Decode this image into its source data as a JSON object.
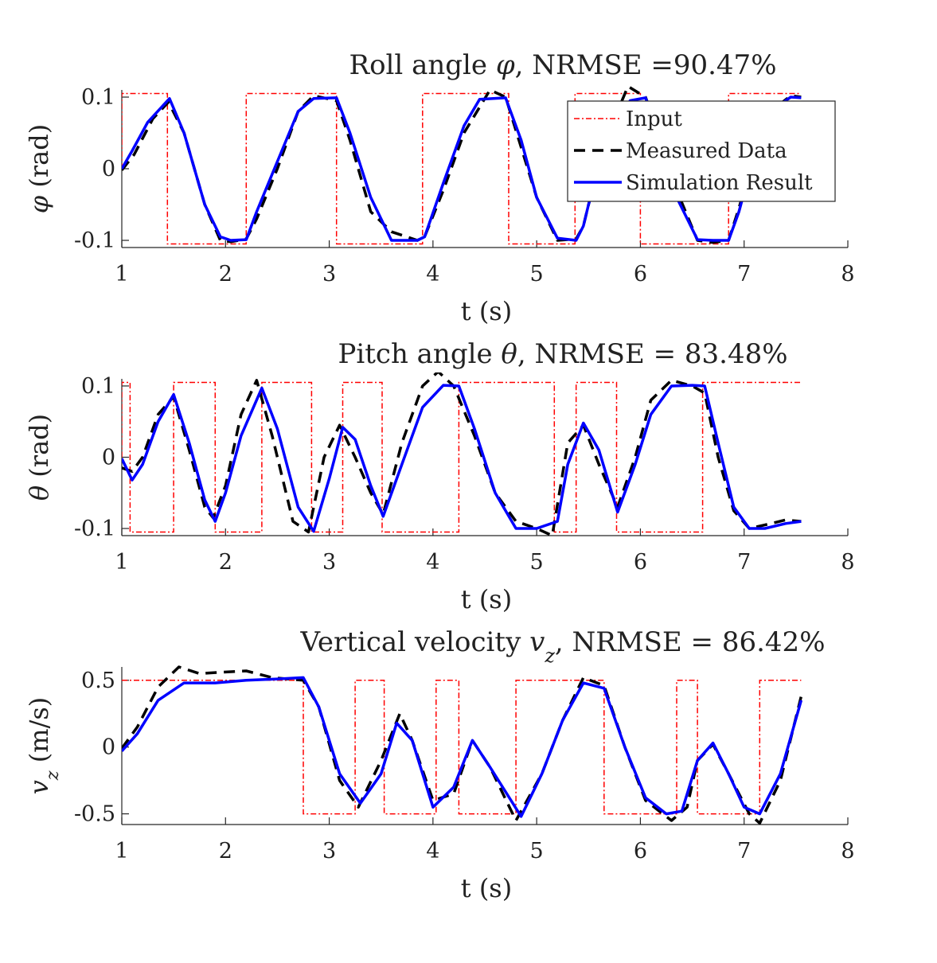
{
  "legend": {
    "placement": "top-right of first panel",
    "entries": [
      {
        "key": "input",
        "label": "Input",
        "color": "#ff0000",
        "dash": "dash-dot"
      },
      {
        "key": "measured",
        "label": "Measured Data",
        "color": "#000000",
        "dash": "dashed"
      },
      {
        "key": "sim",
        "label": "Simulation Result",
        "color": "#0000ff",
        "dash": "solid"
      }
    ]
  },
  "chart_data": [
    {
      "type": "line",
      "title": {
        "prefix": "Roll angle ",
        "symbol": "φ",
        "suffix": ", NRMSE =90.47%"
      },
      "ylabel": {
        "symbol": "φ",
        "text": " (rad)"
      },
      "xlabel": "t (s)",
      "xlim": [
        1,
        8
      ],
      "ylim": [
        -0.11,
        0.11
      ],
      "xticks": [
        1,
        2,
        3,
        4,
        5,
        6,
        7,
        8
      ],
      "yticks": [
        {
          "v": -0.1,
          "label": "-0.1"
        },
        {
          "v": 0,
          "label": "0"
        },
        {
          "v": 0.1,
          "label": "0.1"
        }
      ],
      "has_legend": true,
      "series": {
        "input": {
          "amp": 0.105,
          "switch": [
            1,
            1.44,
            2.2,
            3.07,
            3.9,
            4.73,
            5.37,
            6.0,
            6.85
          ],
          "start": 1,
          "end": 7.55
        },
        "sim": {
          "x": [
            1,
            1.1,
            1.25,
            1.46,
            1.6,
            1.8,
            1.95,
            2.05,
            2.2,
            2.3,
            2.5,
            2.7,
            2.85,
            3.07,
            3.2,
            3.4,
            3.6,
            3.85,
            3.92,
            4.1,
            4.3,
            4.45,
            4.7,
            4.85,
            5.0,
            5.2,
            5.38,
            5.45,
            5.5,
            5.6,
            5.75,
            5.9,
            6.05,
            6.15,
            6.35,
            6.55,
            6.7,
            6.85,
            6.95,
            7.1,
            7.3,
            7.45,
            7.55
          ],
          "y": [
            0.0,
            0.025,
            0.065,
            0.098,
            0.05,
            -0.05,
            -0.095,
            -0.1,
            -0.099,
            -0.06,
            0.01,
            0.08,
            0.098,
            0.099,
            0.05,
            -0.04,
            -0.1,
            -0.1,
            -0.095,
            -0.02,
            0.06,
            0.097,
            0.099,
            0.04,
            -0.04,
            -0.097,
            -0.1,
            -0.08,
            -0.05,
            0.0,
            0.06,
            0.095,
            0.099,
            0.06,
            -0.04,
            -0.099,
            -0.1,
            -0.1,
            -0.06,
            0.02,
            0.085,
            0.1,
            0.099
          ]
        },
        "measured": {
          "x": [
            1,
            1.12,
            1.3,
            1.45,
            1.6,
            1.8,
            1.95,
            2.05,
            2.2,
            2.3,
            2.5,
            2.7,
            2.85,
            3.07,
            3.2,
            3.4,
            3.6,
            3.85,
            3.92,
            4.1,
            4.3,
            4.55,
            4.7,
            4.85,
            5.0,
            5.2,
            5.38,
            5.45,
            5.5,
            5.6,
            5.75,
            5.88,
            6.05,
            6.15,
            6.35,
            6.55,
            6.7,
            6.85,
            6.95,
            7.1,
            7.3,
            7.45,
            7.55
          ],
          "y": [
            -0.002,
            0.02,
            0.07,
            0.093,
            0.05,
            -0.05,
            -0.1,
            -0.102,
            -0.098,
            -0.07,
            0.0,
            0.08,
            0.102,
            0.095,
            0.04,
            -0.06,
            -0.088,
            -0.1,
            -0.095,
            -0.03,
            0.05,
            0.11,
            0.1,
            0.03,
            -0.04,
            -0.1,
            -0.098,
            -0.08,
            -0.05,
            0.0,
            0.07,
            0.115,
            0.1,
            0.06,
            -0.03,
            -0.1,
            -0.103,
            -0.1,
            -0.055,
            0.02,
            0.085,
            0.102,
            0.1
          ]
        }
      }
    },
    {
      "type": "line",
      "title": {
        "prefix": "Pitch angle ",
        "symbol": "θ",
        "suffix": ", NRMSE = 83.48%"
      },
      "ylabel": {
        "symbol": "θ",
        "text": " (rad)"
      },
      "xlabel": "t (s)",
      "xlim": [
        1,
        8
      ],
      "ylim": [
        -0.11,
        0.11
      ],
      "xticks": [
        1,
        2,
        3,
        4,
        5,
        6,
        7,
        8
      ],
      "yticks": [
        {
          "v": -0.1,
          "label": "-0.1"
        },
        {
          "v": 0,
          "label": "0"
        },
        {
          "v": 0.1,
          "label": "0.1"
        }
      ],
      "has_legend": false,
      "series": {
        "input": {
          "amp": 0.105,
          "switch": [
            1.0,
            1.08,
            1.5,
            1.9,
            2.35,
            2.83,
            3.13,
            3.51,
            4.25,
            5.17,
            5.38,
            5.77,
            6.6
          ],
          "start": 1,
          "end": 7.55,
          "start_level": -1
        },
        "sim": {
          "x": [
            1,
            1.1,
            1.2,
            1.35,
            1.5,
            1.65,
            1.8,
            1.9,
            2.0,
            2.15,
            2.35,
            2.5,
            2.7,
            2.85,
            3.0,
            3.13,
            3.25,
            3.4,
            3.52,
            3.7,
            3.9,
            4.1,
            4.25,
            4.4,
            4.6,
            4.8,
            5.0,
            5.2,
            5.3,
            5.45,
            5.6,
            5.78,
            5.95,
            6.1,
            6.3,
            6.5,
            6.62,
            6.75,
            6.9,
            7.05,
            7.2,
            7.4,
            7.55
          ],
          "y": [
            -0.002,
            -0.032,
            -0.01,
            0.05,
            0.088,
            0.02,
            -0.06,
            -0.09,
            -0.05,
            0.03,
            0.097,
            0.04,
            -0.07,
            -0.104,
            -0.03,
            0.042,
            0.025,
            -0.04,
            -0.083,
            -0.01,
            0.07,
            0.101,
            0.1,
            0.04,
            -0.05,
            -0.1,
            -0.1,
            -0.09,
            -0.01,
            0.048,
            0.01,
            -0.077,
            -0.01,
            0.06,
            0.1,
            0.101,
            0.1,
            0.02,
            -0.07,
            -0.1,
            -0.1,
            -0.093,
            -0.09
          ]
        },
        "measured": {
          "x": [
            1,
            1.1,
            1.2,
            1.35,
            1.5,
            1.65,
            1.8,
            1.88,
            2.0,
            2.15,
            2.3,
            2.45,
            2.65,
            2.8,
            2.95,
            3.1,
            3.25,
            3.4,
            3.52,
            3.7,
            3.9,
            4.05,
            4.2,
            4.4,
            4.6,
            4.8,
            5.0,
            5.15,
            5.3,
            5.45,
            5.6,
            5.78,
            5.95,
            6.1,
            6.3,
            6.5,
            6.62,
            6.75,
            6.9,
            7.05,
            7.2,
            7.4,
            7.55
          ],
          "y": [
            -0.015,
            -0.02,
            0.0,
            0.06,
            0.085,
            0.01,
            -0.07,
            -0.085,
            -0.04,
            0.06,
            0.108,
            0.03,
            -0.09,
            -0.105,
            0.0,
            0.045,
            0.0,
            -0.05,
            -0.08,
            0.02,
            0.1,
            0.12,
            0.1,
            0.03,
            -0.05,
            -0.09,
            -0.1,
            -0.11,
            0.02,
            0.045,
            -0.01,
            -0.07,
            0.0,
            0.08,
            0.108,
            0.1,
            0.09,
            0.0,
            -0.075,
            -0.1,
            -0.095,
            -0.088,
            -0.09
          ]
        }
      }
    },
    {
      "type": "line",
      "title": {
        "prefix": "Vertical velocity ",
        "symbol": "v",
        "sub": "z",
        "suffix": ", NRMSE = 86.42%"
      },
      "ylabel": {
        "symbol": "v",
        "sub": "z",
        "text": " (m/s)"
      },
      "xlabel": "t (s)",
      "xlim": [
        1,
        8
      ],
      "ylim": [
        -0.58,
        0.6
      ],
      "xticks": [
        1,
        2,
        3,
        4,
        5,
        6,
        7,
        8
      ],
      "yticks": [
        {
          "v": -0.5,
          "label": "-0.5"
        },
        {
          "v": 0,
          "label": "0"
        },
        {
          "v": 0.5,
          "label": "0.5"
        }
      ],
      "has_legend": false,
      "series": {
        "input": {
          "amp": 0.5,
          "switch": [
            2.75,
            3.25,
            3.53,
            4.03,
            4.25,
            4.8,
            5.65,
            6.35,
            6.55,
            7.15
          ],
          "start": 1,
          "end": 7.55,
          "start_level": 1
        },
        "sim": {
          "x": [
            1,
            1.15,
            1.35,
            1.6,
            1.9,
            2.2,
            2.5,
            2.75,
            2.9,
            3.1,
            3.3,
            3.5,
            3.65,
            3.8,
            4.0,
            4.2,
            4.38,
            4.55,
            4.85,
            5.05,
            5.25,
            5.45,
            5.65,
            5.85,
            6.05,
            6.25,
            6.4,
            6.55,
            6.7,
            6.85,
            7.0,
            7.15,
            7.35,
            7.55
          ],
          "y": [
            -0.03,
            0.1,
            0.35,
            0.48,
            0.48,
            0.5,
            0.51,
            0.52,
            0.3,
            -0.2,
            -0.42,
            -0.2,
            0.18,
            0.05,
            -0.45,
            -0.3,
            0.05,
            -0.15,
            -0.52,
            -0.2,
            0.2,
            0.48,
            0.44,
            0.0,
            -0.38,
            -0.5,
            -0.48,
            -0.1,
            0.03,
            -0.2,
            -0.45,
            -0.5,
            -0.2,
            0.35
          ]
        },
        "measured": {
          "x": [
            1,
            1.15,
            1.35,
            1.55,
            1.75,
            1.95,
            2.2,
            2.45,
            2.75,
            2.9,
            3.1,
            3.28,
            3.5,
            3.68,
            3.8,
            4.0,
            4.2,
            4.38,
            4.55,
            4.8,
            5.05,
            5.25,
            5.45,
            5.65,
            5.85,
            6.05,
            6.3,
            6.45,
            6.55,
            6.7,
            6.85,
            7.05,
            7.15,
            7.35,
            7.55
          ],
          "y": [
            -0.01,
            0.15,
            0.45,
            0.6,
            0.55,
            0.56,
            0.57,
            0.52,
            0.5,
            0.3,
            -0.25,
            -0.45,
            -0.1,
            0.25,
            0.05,
            -0.4,
            -0.35,
            0.05,
            -0.15,
            -0.55,
            -0.2,
            0.2,
            0.52,
            0.46,
            0.0,
            -0.4,
            -0.55,
            -0.45,
            -0.1,
            0.02,
            -0.2,
            -0.5,
            -0.57,
            -0.25,
            0.38
          ]
        }
      }
    }
  ]
}
